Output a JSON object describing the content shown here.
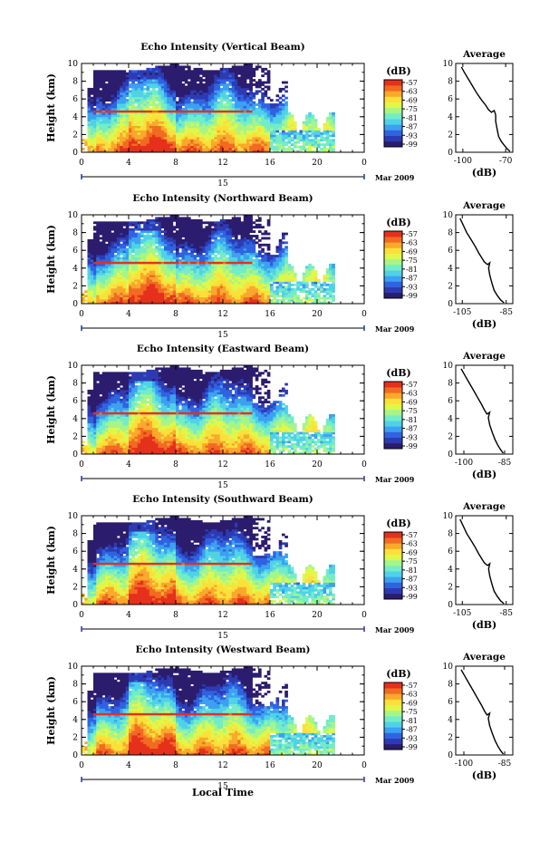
{
  "figure": {
    "xlabel": "Local Time",
    "date_label": "Mar 2009",
    "day_label": "15"
  },
  "colorbar": {
    "unit": "(dB)",
    "ticks": [
      "-57",
      "-63",
      "-69",
      "-75",
      "-81",
      "-87",
      "-93",
      "-99"
    ],
    "colors": [
      "#2c1c6e",
      "#2d3bb3",
      "#2f63e0",
      "#3da0f0",
      "#4fd2e8",
      "#73ecc8",
      "#a6f58a",
      "#e0f74a",
      "#fbe03a",
      "#f9a92c",
      "#f26b22",
      "#e5301c"
    ]
  },
  "chart_data": [
    {
      "type": "heatmap",
      "title": "Echo Intensity (Vertical Beam)",
      "ylabel": "Height (km)",
      "x_ticks": [
        "0",
        "4",
        "8",
        "12",
        "16",
        "20",
        "0"
      ],
      "y_ticks": [
        "0",
        "2",
        "4",
        "6",
        "8",
        "10"
      ],
      "xlim": [
        0,
        24
      ],
      "ylim": [
        0,
        10
      ],
      "profile": {
        "title": "Average",
        "xlabel": "(dB)",
        "x_ticks": [
          "-100",
          "-70"
        ],
        "xlim": [
          -105,
          -65
        ],
        "y_ticks": [
          "0",
          "2",
          "4",
          "6",
          "8",
          "10"
        ],
        "ylim": [
          0,
          10
        ],
        "x": [
          -101,
          -99,
          -96,
          -93,
          -90,
          -87,
          -84,
          -82,
          -80,
          -78,
          -77,
          -77,
          -76,
          -75,
          -73,
          -71,
          -69,
          -67
        ],
        "y": [
          9.6,
          9.0,
          8.2,
          7.4,
          6.6,
          5.9,
          5.3,
          4.8,
          4.5,
          4.7,
          4.2,
          3.5,
          2.6,
          1.8,
          1.2,
          0.8,
          0.4,
          0.1
        ]
      }
    },
    {
      "type": "heatmap",
      "title": "Echo Intensity (Northward Beam)",
      "ylabel": "Height (km)",
      "x_ticks": [
        "0",
        "4",
        "8",
        "12",
        "16",
        "20",
        "0"
      ],
      "y_ticks": [
        "0",
        "2",
        "4",
        "6",
        "8",
        "10"
      ],
      "xlim": [
        0,
        24
      ],
      "ylim": [
        0,
        10
      ],
      "profile": {
        "title": "Average",
        "xlabel": "(dB)",
        "x_ticks": [
          "-105",
          "-85"
        ],
        "xlim": [
          -108,
          -82
        ],
        "y_ticks": [
          "0",
          "2",
          "4",
          "6",
          "8",
          "10"
        ],
        "ylim": [
          0,
          10
        ],
        "x": [
          -106,
          -104.5,
          -103,
          -101,
          -99,
          -97.5,
          -96,
          -95,
          -93.5,
          -92.5,
          -93,
          -92.5,
          -91.5,
          -90.5,
          -89,
          -87.5,
          -86
        ],
        "y": [
          9.6,
          8.8,
          8.0,
          7.2,
          6.4,
          5.7,
          5.1,
          4.7,
          4.4,
          4.6,
          4.0,
          3.2,
          2.3,
          1.5,
          0.9,
          0.4,
          0.1
        ]
      }
    },
    {
      "type": "heatmap",
      "title": "Echo Intensity (Eastward Beam)",
      "ylabel": "Height (km)",
      "x_ticks": [
        "0",
        "4",
        "8",
        "12",
        "16",
        "20",
        "0"
      ],
      "y_ticks": [
        "0",
        "2",
        "4",
        "6",
        "8",
        "10"
      ],
      "xlim": [
        0,
        24
      ],
      "ylim": [
        0,
        10
      ],
      "profile": {
        "title": "Average",
        "xlabel": "(dB)",
        "x_ticks": [
          "-100",
          "-85"
        ],
        "xlim": [
          -103,
          -82
        ],
        "y_ticks": [
          "0",
          "2",
          "4",
          "6",
          "8",
          "10"
        ],
        "ylim": [
          0,
          10
        ],
        "x": [
          -101,
          -99.5,
          -98,
          -96.5,
          -95,
          -93.5,
          -92.5,
          -91.5,
          -90.5,
          -91,
          -90.5,
          -89.5,
          -88.5,
          -87.5,
          -86.5,
          -85.5
        ],
        "y": [
          9.6,
          8.8,
          8.0,
          7.2,
          6.4,
          5.6,
          5.0,
          4.5,
          4.7,
          4.1,
          3.3,
          2.4,
          1.6,
          1.0,
          0.5,
          0.1
        ]
      }
    },
    {
      "type": "heatmap",
      "title": "Echo Intensity (Southward Beam)",
      "ylabel": "Height (km)",
      "x_ticks": [
        "0",
        "4",
        "8",
        "12",
        "16",
        "20",
        "0"
      ],
      "y_ticks": [
        "0",
        "2",
        "4",
        "6",
        "8",
        "10"
      ],
      "xlim": [
        0,
        24
      ],
      "ylim": [
        0,
        10
      ],
      "profile": {
        "title": "Average",
        "xlabel": "(dB)",
        "x_ticks": [
          "-105",
          "-85"
        ],
        "xlim": [
          -108,
          -82
        ],
        "y_ticks": [
          "0",
          "2",
          "4",
          "6",
          "8",
          "10"
        ],
        "ylim": [
          0,
          10
        ],
        "x": [
          -106,
          -104.5,
          -103,
          -101,
          -99,
          -97.5,
          -96,
          -95,
          -93.5,
          -92.5,
          -93,
          -92.5,
          -91.5,
          -90.5,
          -89,
          -87.5,
          -86
        ],
        "y": [
          9.6,
          8.8,
          8.0,
          7.2,
          6.4,
          5.7,
          5.1,
          4.7,
          4.4,
          4.6,
          4.0,
          3.2,
          2.3,
          1.5,
          0.9,
          0.4,
          0.1
        ]
      }
    },
    {
      "type": "heatmap",
      "title": "Echo Intensity (Westward Beam)",
      "ylabel": "Height (km)",
      "x_ticks": [
        "0",
        "4",
        "8",
        "12",
        "16",
        "20",
        "0"
      ],
      "y_ticks": [
        "0",
        "2",
        "4",
        "6",
        "8",
        "10"
      ],
      "xlim": [
        0,
        24
      ],
      "ylim": [
        0,
        10
      ],
      "profile": {
        "title": "Average",
        "xlabel": "(dB)",
        "x_ticks": [
          "-100",
          "-85"
        ],
        "xlim": [
          -103,
          -82
        ],
        "y_ticks": [
          "0",
          "2",
          "4",
          "6",
          "8",
          "10"
        ],
        "ylim": [
          0,
          10
        ],
        "x": [
          -101,
          -99.5,
          -98,
          -96.5,
          -95,
          -93.5,
          -92.5,
          -91.5,
          -90.5,
          -91,
          -90.5,
          -89.5,
          -88.5,
          -87.5,
          -86.5,
          -85.5
        ],
        "y": [
          9.6,
          8.8,
          8.0,
          7.2,
          6.4,
          5.6,
          5.0,
          4.5,
          4.7,
          4.1,
          3.3,
          2.4,
          1.6,
          1.0,
          0.5,
          0.1
        ]
      }
    }
  ]
}
